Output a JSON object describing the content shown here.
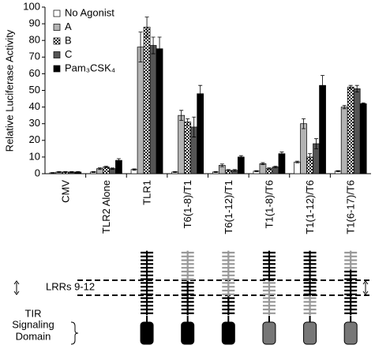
{
  "chart_data": {
    "type": "bar",
    "y_label": "Relative Luciferase Activity",
    "categories": [
      "CMV",
      "TLR2 Alone",
      "TLR1",
      "T6(1-8)/T1",
      "T6(1-12)/T1",
      "T1(1-8)/T6",
      "T1(1-12)/T6",
      "T1(6-17)/T6"
    ],
    "series": [
      {
        "name": "No Agonist",
        "color": "#ffffff",
        "values": [
          0.5,
          1,
          2.5,
          1,
          1,
          1.5,
          7,
          1.5
        ],
        "errors": [
          0.2,
          0.3,
          0.4,
          0.3,
          0.3,
          0.3,
          0.5,
          0.3
        ]
      },
      {
        "name": "A",
        "color": "#b3b3b3",
        "values": [
          1,
          3,
          76,
          35,
          5,
          6,
          30,
          40
        ],
        "errors": [
          0.3,
          0.5,
          9,
          3,
          0.8,
          0.6,
          3,
          1
        ]
      },
      {
        "name": "B",
        "color": "#333333",
        "pattern": "checker",
        "values": [
          1,
          4,
          88,
          31,
          2,
          3,
          10,
          52
        ],
        "errors": [
          0.3,
          0.5,
          6,
          2,
          0.5,
          0.5,
          2,
          1
        ]
      },
      {
        "name": "C",
        "color": "#555555",
        "values": [
          1,
          3,
          77,
          28,
          2,
          4,
          18,
          51
        ],
        "errors": [
          0.3,
          0.4,
          5,
          6,
          0.5,
          0.5,
          3,
          2
        ]
      },
      {
        "name": "Pam₃CSK₄",
        "color": "#000000",
        "values": [
          1,
          8,
          75,
          48,
          10,
          12,
          53,
          42
        ],
        "errors": [
          0.3,
          1,
          7,
          5,
          0.8,
          1,
          6,
          0.5
        ]
      }
    ],
    "ylim": [
      0,
      100
    ],
    "yticks": [
      0,
      10,
      20,
      30,
      40,
      50,
      60,
      70,
      80,
      90,
      100
    ],
    "grid": false,
    "legend": "top-left"
  },
  "diagram": {
    "lrr_label": "LRRs 9-12",
    "tir_label": [
      "TIR",
      "Signaling",
      "Domain"
    ]
  }
}
